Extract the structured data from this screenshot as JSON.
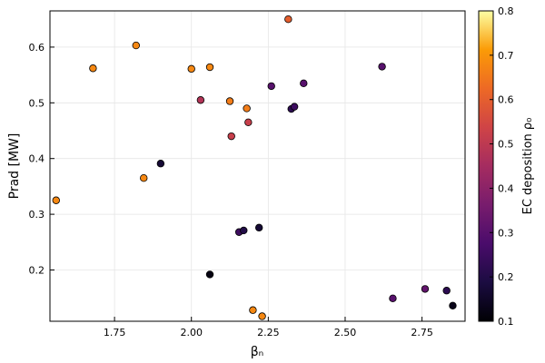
{
  "chart_data": {
    "type": "scatter",
    "xlabel": "βₙ",
    "ylabel": "Prad [MW]",
    "xlim": [
      1.54,
      2.89
    ],
    "ylim": [
      0.108,
      0.665
    ],
    "xticks": [
      1.75,
      2.0,
      2.25,
      2.5,
      2.75
    ],
    "xtick_labels": [
      "1.75",
      "2.00",
      "2.25",
      "2.50",
      "2.75"
    ],
    "yticks": [
      0.2,
      0.3,
      0.4,
      0.5,
      0.6
    ],
    "ytick_labels": [
      "0.2",
      "0.3",
      "0.4",
      "0.5",
      "0.6"
    ],
    "grid": true,
    "colorbar": {
      "label": "EC deposition ρ₀",
      "range": [
        0.1,
        0.8
      ],
      "ticks": [
        0.1,
        0.2,
        0.3,
        0.4,
        0.5,
        0.6,
        0.7,
        0.8
      ],
      "tick_labels": [
        "0.1",
        "0.2",
        "0.3",
        "0.4",
        "0.5",
        "0.6",
        "0.7",
        "0.8"
      ],
      "colormap": "inferno"
    },
    "points": [
      {
        "x": 1.56,
        "y": 0.325,
        "c": 0.68
      },
      {
        "x": 1.68,
        "y": 0.562,
        "c": 0.68
      },
      {
        "x": 1.82,
        "y": 0.603,
        "c": 0.68
      },
      {
        "x": 1.845,
        "y": 0.365,
        "c": 0.68
      },
      {
        "x": 1.9,
        "y": 0.391,
        "c": 0.17
      },
      {
        "x": 2.0,
        "y": 0.561,
        "c": 0.68
      },
      {
        "x": 2.03,
        "y": 0.505,
        "c": 0.48
      },
      {
        "x": 2.06,
        "y": 0.564,
        "c": 0.68
      },
      {
        "x": 2.06,
        "y": 0.192,
        "c": 0.12
      },
      {
        "x": 2.125,
        "y": 0.503,
        "c": 0.66
      },
      {
        "x": 2.13,
        "y": 0.44,
        "c": 0.52
      },
      {
        "x": 2.155,
        "y": 0.268,
        "c": 0.25
      },
      {
        "x": 2.17,
        "y": 0.271,
        "c": 0.2
      },
      {
        "x": 2.18,
        "y": 0.49,
        "c": 0.66
      },
      {
        "x": 2.185,
        "y": 0.465,
        "c": 0.52
      },
      {
        "x": 2.2,
        "y": 0.128,
        "c": 0.68
      },
      {
        "x": 2.22,
        "y": 0.276,
        "c": 0.17
      },
      {
        "x": 2.23,
        "y": 0.117,
        "c": 0.68
      },
      {
        "x": 2.26,
        "y": 0.53,
        "c": 0.3
      },
      {
        "x": 2.315,
        "y": 0.65,
        "c": 0.6
      },
      {
        "x": 2.325,
        "y": 0.489,
        "c": 0.22
      },
      {
        "x": 2.335,
        "y": 0.493,
        "c": 0.25
      },
      {
        "x": 2.365,
        "y": 0.535,
        "c": 0.3
      },
      {
        "x": 2.62,
        "y": 0.565,
        "c": 0.3
      },
      {
        "x": 2.655,
        "y": 0.149,
        "c": 0.3
      },
      {
        "x": 2.76,
        "y": 0.166,
        "c": 0.32
      },
      {
        "x": 2.83,
        "y": 0.163,
        "c": 0.22
      },
      {
        "x": 2.85,
        "y": 0.136,
        "c": 0.13
      }
    ]
  }
}
